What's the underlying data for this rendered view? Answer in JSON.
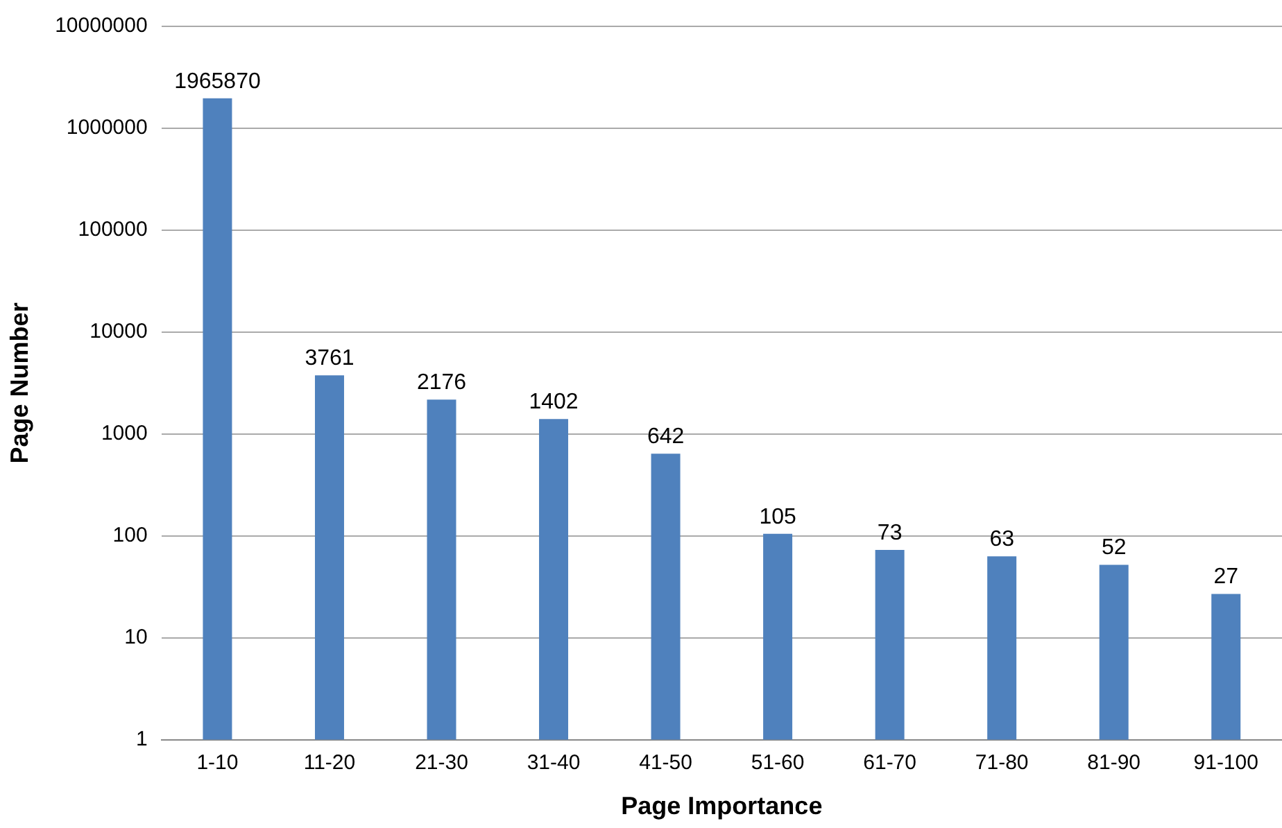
{
  "chart_data": {
    "type": "bar",
    "xlabel": "Page Importance",
    "ylabel": "Page Number",
    "categories": [
      "1-10",
      "11-20",
      "21-30",
      "31-40",
      "41-50",
      "51-60",
      "61-70",
      "71-80",
      "81-90",
      "91-100"
    ],
    "values": [
      1965870,
      3761,
      2176,
      1402,
      642,
      105,
      73,
      63,
      52,
      27
    ],
    "color": "#4f81bd",
    "log": true,
    "ylim": [
      1,
      10000000
    ],
    "yticks": [
      1,
      10,
      100,
      1000,
      10000,
      100000,
      1000000,
      10000000
    ],
    "grid": "y",
    "data_labels": true,
    "legend": false
  }
}
